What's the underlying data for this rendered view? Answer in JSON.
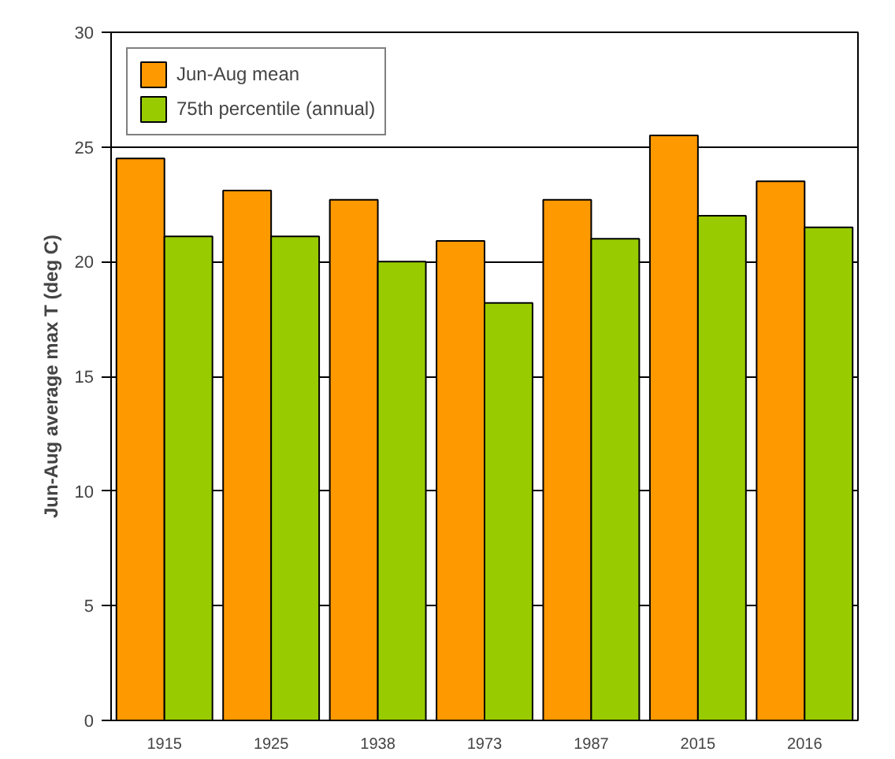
{
  "chart_data": {
    "type": "bar",
    "ylabel": "Jun-Aug average max T (deg C)",
    "categories": [
      "1915",
      "1925",
      "1938",
      "1973",
      "1987",
      "2015",
      "2016"
    ],
    "series": [
      {
        "name": "Jun-Aug mean",
        "color": "#ff9900",
        "values": [
          24.5,
          23.1,
          22.7,
          20.9,
          22.7,
          25.5,
          23.5
        ]
      },
      {
        "name": "75th percentile (annual)",
        "color": "#99cc00",
        "values": [
          21.1,
          21.1,
          20.0,
          18.2,
          21.0,
          22.0,
          21.5
        ]
      }
    ],
    "ylim": [
      0,
      30
    ],
    "yticks": [
      0,
      5,
      10,
      15,
      20,
      25,
      30
    ],
    "grid": "y",
    "legend": "top left"
  }
}
